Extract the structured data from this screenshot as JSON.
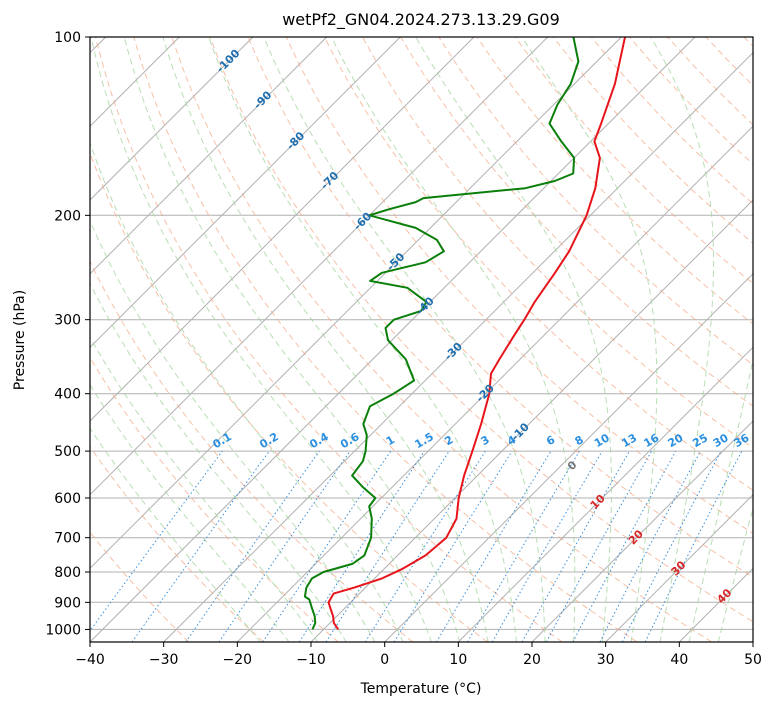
{
  "chart_data": {
    "type": "line",
    "title": "wetPf2_GN04.2024.273.13.29.G09",
    "xlabel": "Temperature (°C)",
    "ylabel": "Pressure (hPa)",
    "xlim": [
      -40,
      50
    ],
    "ylim": [
      1050,
      100
    ],
    "y_scale": "log",
    "x_ticks": [
      -40,
      -30,
      -20,
      -10,
      0,
      10,
      20,
      30,
      40,
      50
    ],
    "y_ticks": [
      100,
      200,
      300,
      400,
      500,
      600,
      700,
      800,
      900,
      1000
    ],
    "grid": true,
    "skew_degrees": 45,
    "series": [
      {
        "key": "temperature",
        "color": "#e8141b",
        "points": [
          [
            1000,
            -8.0
          ],
          [
            975,
            -9.5
          ],
          [
            950,
            -10.5
          ],
          [
            920,
            -12.0
          ],
          [
            900,
            -13.0
          ],
          [
            870,
            -13.5
          ],
          [
            850,
            -11.5
          ],
          [
            820,
            -9.0
          ],
          [
            790,
            -7.5
          ],
          [
            750,
            -6.2
          ],
          [
            700,
            -5.8
          ],
          [
            650,
            -7.0
          ],
          [
            600,
            -9.5
          ],
          [
            550,
            -11.8
          ],
          [
            500,
            -14.0
          ],
          [
            450,
            -16.5
          ],
          [
            400,
            -19.5
          ],
          [
            370,
            -22.0
          ],
          [
            350,
            -22.8
          ],
          [
            320,
            -24.0
          ],
          [
            300,
            -24.8
          ],
          [
            280,
            -25.8
          ],
          [
            250,
            -27.0
          ],
          [
            230,
            -28.0
          ],
          [
            200,
            -30.5
          ],
          [
            180,
            -33.0
          ],
          [
            160,
            -36.5
          ],
          [
            150,
            -39.5
          ],
          [
            140,
            -41.0
          ],
          [
            120,
            -44.5
          ],
          [
            100,
            -49.5
          ]
        ]
      },
      {
        "key": "dewpoint",
        "color": "#0a7f0a",
        "points": [
          [
            1000,
            -11.5
          ],
          [
            975,
            -12.0
          ],
          [
            950,
            -13.0
          ],
          [
            920,
            -14.5
          ],
          [
            890,
            -16.0
          ],
          [
            880,
            -17.0
          ],
          [
            850,
            -18.0
          ],
          [
            820,
            -18.5
          ],
          [
            800,
            -17.8
          ],
          [
            775,
            -15.0
          ],
          [
            750,
            -14.5
          ],
          [
            700,
            -16.0
          ],
          [
            650,
            -18.5
          ],
          [
            620,
            -20.5
          ],
          [
            600,
            -20.8
          ],
          [
            575,
            -24.0
          ],
          [
            550,
            -27.0
          ],
          [
            520,
            -27.5
          ],
          [
            500,
            -28.5
          ],
          [
            470,
            -30.5
          ],
          [
            450,
            -32.5
          ],
          [
            420,
            -34.0
          ],
          [
            400,
            -32.5
          ],
          [
            380,
            -31.5
          ],
          [
            350,
            -35.5
          ],
          [
            325,
            -40.5
          ],
          [
            310,
            -42.5
          ],
          [
            300,
            -42.5
          ],
          [
            290,
            -40.0
          ],
          [
            280,
            -40.5
          ],
          [
            265,
            -45.0
          ],
          [
            258,
            -51.0
          ],
          [
            250,
            -50.5
          ],
          [
            240,
            -46.0
          ],
          [
            230,
            -45.0
          ],
          [
            220,
            -47.5
          ],
          [
            210,
            -52.0
          ],
          [
            200,
            -60.0
          ],
          [
            195,
            -58.0
          ],
          [
            190,
            -55.5
          ],
          [
            187,
            -55.0
          ],
          [
            180,
            -42.5
          ],
          [
            175,
            -39.5
          ],
          [
            170,
            -38.0
          ],
          [
            160,
            -40.0
          ],
          [
            150,
            -44.0
          ],
          [
            140,
            -48.0
          ],
          [
            130,
            -49.5
          ],
          [
            120,
            -50.5
          ],
          [
            110,
            -52.5
          ],
          [
            100,
            -56.5
          ]
        ]
      }
    ],
    "dry_adiabat_labels": [
      "-100",
      "-90",
      "-80",
      "-70",
      "-60",
      "-50",
      "-40",
      "-30",
      "-20",
      "-10"
    ],
    "dry_adiabat_label_values": [
      -100,
      -90,
      -80,
      -70,
      -60,
      -50,
      -40,
      -30,
      -20,
      -10
    ],
    "moist_adiabat_labels": [
      "0",
      "10",
      "20",
      "30",
      "40"
    ],
    "moist_adiabat_label_values": [
      0,
      10,
      20,
      30,
      40
    ],
    "mixing_ratio_labels": [
      "0.1",
      "0.2",
      "0.4",
      "0.6",
      "1",
      "1.5",
      "2",
      "3",
      "4",
      "6",
      "8",
      "10",
      "13",
      "16",
      "20",
      "25",
      "30",
      "36"
    ],
    "mixing_ratio_values": [
      0.1,
      0.2,
      0.4,
      0.6,
      1,
      1.5,
      2,
      3,
      4,
      6,
      8,
      10,
      13,
      16,
      20,
      25,
      30,
      36
    ],
    "colors": {
      "isobar": "#b0b0b0",
      "isotherm": "#b0b0b0",
      "dry_adiabat": "#f4a582",
      "moist_adiabat": "#a8d5a2",
      "mixing_ratio": "#3b8fd9",
      "dry_label": "#1f6fb0",
      "moist_label_zero": "#777777",
      "moist_label": "#d62728",
      "mixing_label": "#2a8fe0",
      "isotherm_zero": "#c9b79c"
    }
  }
}
